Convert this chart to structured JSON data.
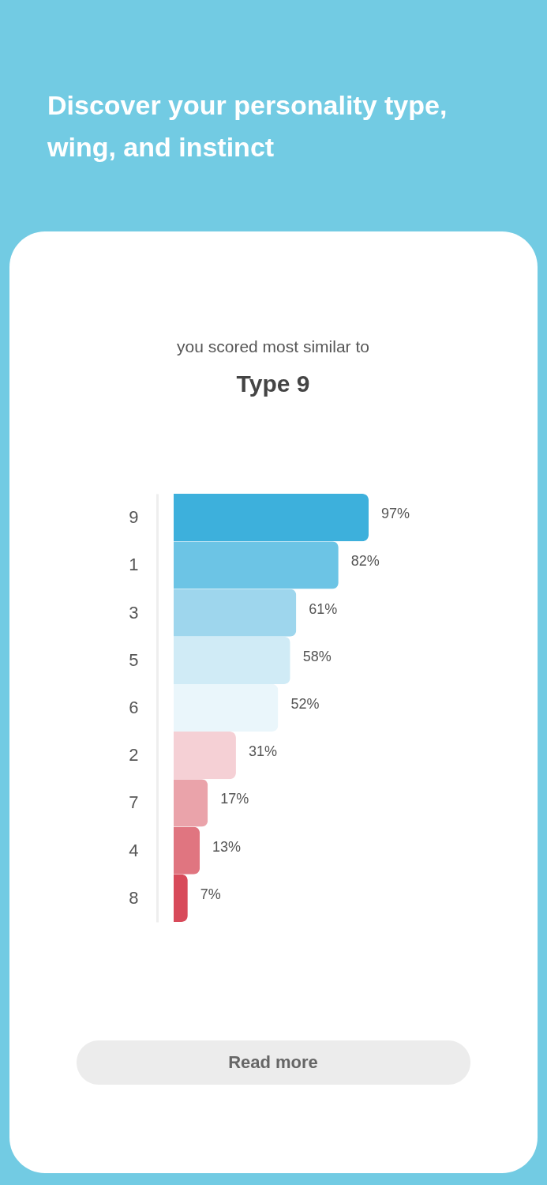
{
  "chart_data": {
    "type": "bar",
    "orientation": "horizontal",
    "title": "Discover your personality type, wing, and instinct",
    "subtitle": "you scored most similar to",
    "annotations": [
      "Type 9",
      "Read more"
    ],
    "categories": [
      "9",
      "1",
      "3",
      "5",
      "6",
      "2",
      "7",
      "4",
      "8"
    ],
    "values": [
      97,
      82,
      61,
      58,
      52,
      31,
      17,
      13,
      7
    ],
    "value_labels": [
      "97%",
      "82%",
      "61%",
      "58%",
      "52%",
      "31%",
      "17%",
      "13%",
      "7%"
    ],
    "colors": [
      "#3db0dc",
      "#6cc4e5",
      "#9ed6ed",
      "#d0ebf6",
      "#eaf6fb",
      "#f5d0d5",
      "#eaa3aa",
      "#e07580",
      "#d84a5a"
    ],
    "tick_labels": "y"
  }
}
